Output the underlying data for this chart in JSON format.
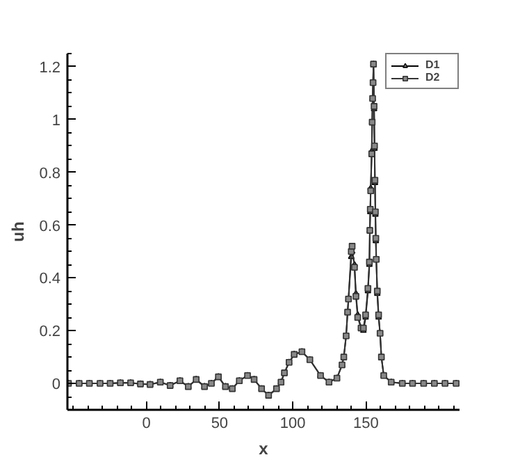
{
  "chart_data": {
    "type": "line",
    "xlabel": "x",
    "ylabel": "uh",
    "xlim": [
      -54,
      214
    ],
    "ylim": [
      -0.1,
      1.25
    ],
    "xticks": [
      0,
      50,
      100,
      150
    ],
    "yticks": [
      0,
      0.2,
      0.4,
      0.6,
      0.8,
      1,
      1.2
    ],
    "grid": false,
    "legend": "top right",
    "line_style": "solid",
    "x": [
      -53.3,
      -46,
      -39,
      -31.7,
      -24.8,
      -17.8,
      -10.8,
      -4.1,
      2.5,
      9.5,
      16.2,
      22.9,
      28.6,
      34,
      39.7,
      44.4,
      49.2,
      54,
      58.7,
      63.5,
      69.1,
      73.6,
      78.7,
      83.5,
      88.9,
      92,
      94.3,
      97.5,
      101,
      106.3,
      111.7,
      119,
      124.8,
      130.2,
      133.7,
      134.9,
      136.5,
      137.5,
      138.1,
      140,
      140.6,
      142.2,
      143.2,
      144.4,
      146.7,
      148.3,
      149.8,
      151.4,
      152.4,
      152.7,
      153,
      153.3,
      154,
      154.3,
      154.6,
      154.9,
      155.2,
      155.6,
      155.9,
      156.2,
      156.5,
      156.8,
      157.1,
      157.8,
      158.7,
      159.7,
      160.6,
      162.2,
      167.3,
      174.9,
      181.9,
      189.5,
      196.8,
      204.1,
      211.7
    ],
    "series": [
      {
        "name": "D1",
        "color": "#000000",
        "marker": "triangle",
        "values": [
          0,
          0,
          0,
          0,
          0,
          0.002,
          0.002,
          -0.002,
          -0.004,
          0.005,
          -0.008,
          0.01,
          -0.012,
          0.015,
          -0.012,
          0,
          0.025,
          -0.012,
          -0.02,
          0.01,
          0.03,
          0.015,
          -0.02,
          -0.045,
          -0.02,
          0.005,
          0.04,
          0.08,
          0.11,
          0.12,
          0.09,
          0.03,
          0.005,
          0.02,
          0.07,
          0.1,
          0.18,
          0.27,
          0.32,
          0.48,
          0.5,
          0.45,
          0.34,
          0.26,
          0.21,
          0.2,
          0.25,
          0.35,
          0.45,
          0.58,
          0.65,
          0.74,
          0.88,
          0.99,
          1.08,
          1.14,
          1.21,
          1.04,
          0.89,
          0.76,
          0.64,
          0.54,
          0.47,
          0.34,
          0.25,
          0.19,
          0.1,
          0.03,
          0.005,
          0,
          0,
          0,
          0,
          0,
          0
        ]
      },
      {
        "name": "D2",
        "color": "#333333",
        "marker": "square",
        "values": [
          0,
          0,
          0,
          0,
          0,
          0.002,
          0.002,
          -0.002,
          -0.004,
          0.005,
          -0.008,
          0.01,
          -0.012,
          0.015,
          -0.012,
          0,
          0.025,
          -0.012,
          -0.02,
          0.01,
          0.03,
          0.015,
          -0.02,
          -0.045,
          -0.02,
          0.005,
          0.04,
          0.08,
          0.11,
          0.12,
          0.09,
          0.03,
          0.005,
          0.02,
          0.07,
          0.1,
          0.18,
          0.27,
          0.32,
          0.5,
          0.52,
          0.44,
          0.33,
          0.25,
          0.21,
          0.21,
          0.26,
          0.36,
          0.46,
          0.58,
          0.66,
          0.73,
          0.87,
          0.99,
          1.08,
          1.14,
          1.21,
          1.05,
          0.9,
          0.77,
          0.65,
          0.55,
          0.47,
          0.35,
          0.26,
          0.19,
          0.1,
          0.03,
          0.005,
          0,
          0,
          0,
          0,
          0,
          0
        ]
      }
    ]
  }
}
